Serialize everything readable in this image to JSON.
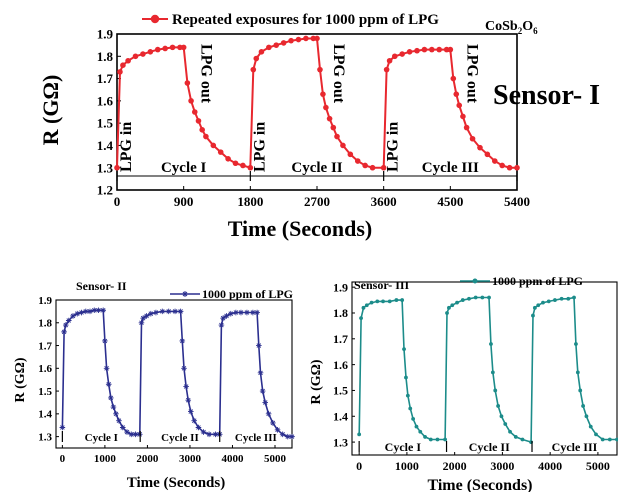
{
  "chart_data": [
    {
      "type": "line",
      "title": "Sensor- I",
      "compound": "CoSb₂O₆",
      "xlabel": "Time (Seconds)",
      "ylabel": "R (GΩ)",
      "xlim": [
        0,
        5400
      ],
      "ylim": [
        1.2,
        1.9
      ],
      "xticks": [
        0,
        900,
        1800,
        2700,
        3600,
        4500,
        5400
      ],
      "yticks": [
        "1.2",
        "1.3",
        "1.4",
        "1.5",
        "1.6",
        "1.7",
        "1.8",
        "1.9"
      ],
      "color": "#e8282f",
      "legend": "Repeated exposures for 1000 ppm of LPG",
      "legend_position": "top",
      "annotations": [
        "LPG in",
        "LPG out",
        "LPG in",
        "LPG out",
        "LPG in",
        "LPG out"
      ],
      "cycles": [
        "Cycle I",
        "Cycle II",
        "Cycle III"
      ],
      "series": [
        {
          "x": [
            0,
            40,
            80,
            150,
            250,
            350,
            450,
            550,
            650,
            750,
            850,
            900,
            950,
            1000,
            1050,
            1100,
            1150,
            1200,
            1300,
            1400,
            1500,
            1600,
            1700,
            1800,
            1840,
            1880,
            1950,
            2050,
            2150,
            2250,
            2350,
            2450,
            2550,
            2650,
            2700,
            2740,
            2780,
            2820,
            2870,
            2920,
            2970,
            3050,
            3150,
            3250,
            3350,
            3450,
            3600,
            3640,
            3680,
            3750,
            3850,
            3950,
            4050,
            4150,
            4250,
            4350,
            4450,
            4500,
            4540,
            4580,
            4620,
            4670,
            4720,
            4800,
            4900,
            5000,
            5100,
            5200,
            5300,
            5400
          ],
          "y": [
            1.3,
            1.73,
            1.76,
            1.78,
            1.8,
            1.81,
            1.82,
            1.83,
            1.835,
            1.84,
            1.84,
            1.84,
            1.68,
            1.6,
            1.55,
            1.51,
            1.47,
            1.44,
            1.4,
            1.37,
            1.34,
            1.32,
            1.31,
            1.3,
            1.74,
            1.79,
            1.82,
            1.84,
            1.85,
            1.86,
            1.87,
            1.875,
            1.88,
            1.88,
            1.88,
            1.74,
            1.63,
            1.57,
            1.52,
            1.48,
            1.44,
            1.4,
            1.36,
            1.33,
            1.31,
            1.3,
            1.3,
            1.74,
            1.78,
            1.8,
            1.81,
            1.82,
            1.825,
            1.83,
            1.83,
            1.83,
            1.83,
            1.83,
            1.7,
            1.63,
            1.58,
            1.53,
            1.48,
            1.43,
            1.39,
            1.36,
            1.33,
            1.31,
            1.3,
            1.3
          ]
        }
      ]
    },
    {
      "type": "line",
      "title": "Sensor- II",
      "xlabel": "Time (Seconds)",
      "ylabel": "R (GΩ)",
      "xlim": [
        -150,
        5400
      ],
      "ylim": [
        1.25,
        1.9
      ],
      "xticks": [
        0,
        1000,
        2000,
        3000,
        4000,
        5000
      ],
      "yticks": [
        "1.3",
        "1.4",
        "1.5",
        "1.6",
        "1.7",
        "1.8",
        "1.9"
      ],
      "color": "#2b2f8f",
      "legend": "1000 ppm of LPG",
      "legend_position": "top-right",
      "cycles": [
        "Cycle I",
        "Cycle II",
        "Cycle III"
      ],
      "series": [
        {
          "name": "1000 ppm of LPG",
          "x": [
            0,
            40,
            80,
            150,
            250,
            350,
            450,
            550,
            650,
            750,
            850,
            960,
            1000,
            1040,
            1090,
            1140,
            1200,
            1260,
            1330,
            1420,
            1520,
            1620,
            1720,
            1820,
            1860,
            1900,
            1980,
            2080,
            2200,
            2350,
            2500,
            2650,
            2780,
            2820,
            2860,
            2910,
            2960,
            3020,
            3100,
            3200,
            3320,
            3450,
            3600,
            3700,
            3740,
            3780,
            3860,
            3960,
            4080,
            4200,
            4340,
            4480,
            4580,
            4620,
            4660,
            4710,
            4770,
            4850,
            4950,
            5060,
            5180,
            5300,
            5400
          ],
          "y": [
            1.34,
            1.76,
            1.79,
            1.81,
            1.83,
            1.84,
            1.845,
            1.85,
            1.85,
            1.855,
            1.855,
            1.855,
            1.72,
            1.6,
            1.53,
            1.47,
            1.43,
            1.4,
            1.37,
            1.34,
            1.32,
            1.31,
            1.31,
            1.31,
            1.8,
            1.82,
            1.83,
            1.84,
            1.845,
            1.85,
            1.85,
            1.85,
            1.85,
            1.72,
            1.6,
            1.52,
            1.46,
            1.41,
            1.37,
            1.34,
            1.32,
            1.31,
            1.31,
            1.31,
            1.79,
            1.82,
            1.83,
            1.84,
            1.845,
            1.845,
            1.845,
            1.845,
            1.845,
            1.7,
            1.58,
            1.5,
            1.45,
            1.4,
            1.36,
            1.33,
            1.31,
            1.3,
            1.3
          ]
        }
      ]
    },
    {
      "type": "line",
      "title": "Sensor- III",
      "xlabel": "Time (Seconds)",
      "ylabel": "R (GΩ)",
      "xlim": [
        -150,
        5400
      ],
      "ylim": [
        1.25,
        1.92
      ],
      "xticks": [
        0,
        1000,
        2000,
        3000,
        4000,
        5000
      ],
      "yticks": [
        "1.3",
        "1.4",
        "1.5",
        "1.6",
        "1.7",
        "1.8",
        "1.9"
      ],
      "color": "#1c8c8a",
      "legend": "1000 ppm of LPG",
      "legend_position": "top-right",
      "cycles": [
        "Cycle I",
        "Cycle II",
        "Cycle III"
      ],
      "series": [
        {
          "name": "1000 ppm of LPG",
          "x": [
            0,
            40,
            90,
            160,
            260,
            380,
            500,
            640,
            780,
            900,
            940,
            980,
            1020,
            1070,
            1130,
            1200,
            1280,
            1380,
            1500,
            1640,
            1800,
            1840,
            1880,
            1950,
            2050,
            2170,
            2300,
            2440,
            2580,
            2720,
            2760,
            2800,
            2850,
            2910,
            2980,
            3060,
            3160,
            3280,
            3420,
            3600,
            3640,
            3680,
            3750,
            3850,
            3970,
            4100,
            4240,
            4380,
            4500,
            4540,
            4580,
            4630,
            4690,
            4760,
            4850,
            4960,
            5100,
            5250,
            5400
          ],
          "y": [
            1.33,
            1.78,
            1.82,
            1.83,
            1.84,
            1.845,
            1.845,
            1.845,
            1.85,
            1.85,
            1.66,
            1.55,
            1.48,
            1.43,
            1.39,
            1.36,
            1.34,
            1.32,
            1.31,
            1.31,
            1.31,
            1.8,
            1.82,
            1.83,
            1.84,
            1.85,
            1.855,
            1.86,
            1.86,
            1.86,
            1.68,
            1.57,
            1.5,
            1.44,
            1.4,
            1.37,
            1.34,
            1.32,
            1.31,
            1.3,
            1.79,
            1.82,
            1.83,
            1.84,
            1.845,
            1.85,
            1.855,
            1.855,
            1.86,
            1.68,
            1.57,
            1.5,
            1.44,
            1.4,
            1.36,
            1.33,
            1.31,
            1.31,
            1.31
          ]
        }
      ]
    }
  ]
}
